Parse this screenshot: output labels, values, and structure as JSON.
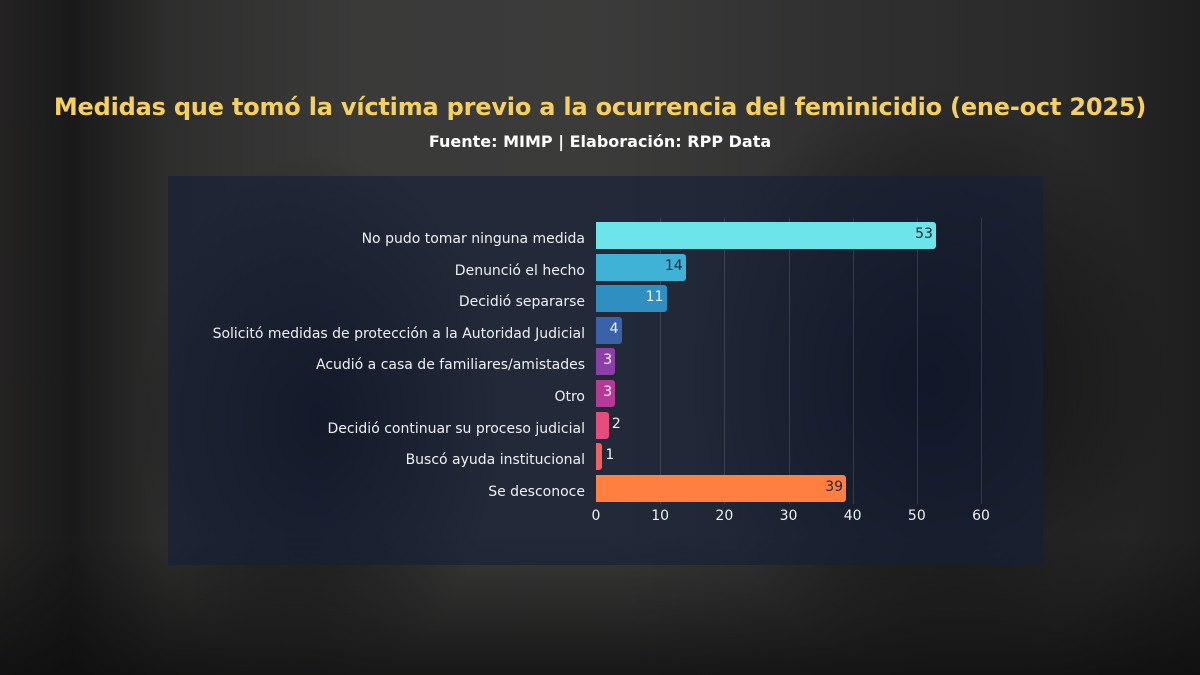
{
  "header": {
    "title": "Medidas que tomó la víctima previo a la ocurrencia del feminicidio (ene-oct 2025)",
    "subtitle": "Fuente: MIMP | Elaboración: RPP Data"
  },
  "chart_data": {
    "type": "bar",
    "orientation": "horizontal",
    "title": "Medidas que tomó la víctima previo a la ocurrencia del feminicidio (ene-oct 2025)",
    "subtitle": "Fuente: MIMP | Elaboración: RPP Data",
    "xlabel": "",
    "ylabel": "",
    "xlim": [
      0,
      60
    ],
    "x_ticks": [
      "0",
      "10",
      "20",
      "30",
      "40",
      "50",
      "60"
    ],
    "grid": true,
    "legend": "none",
    "categories": [
      "No pudo tomar ninguna medida",
      "Denunció el hecho",
      "Decidió separarse",
      "Solicitó medidas de protección a la Autoridad Judicial",
      "Acudió a casa de familiares/amistades",
      "Otro",
      "Decidió continuar su proceso judicial",
      "Buscó ayuda institucional",
      "Se desconoce"
    ],
    "values": [
      53,
      14,
      11,
      4,
      3,
      3,
      2,
      1,
      39
    ],
    "colors": [
      "#6de4ea",
      "#3fb2d6",
      "#2f8fc1",
      "#3a62a8",
      "#8c3fa6",
      "#b53a96",
      "#e74c7c",
      "#f06060",
      "#ff7f40"
    ]
  }
}
